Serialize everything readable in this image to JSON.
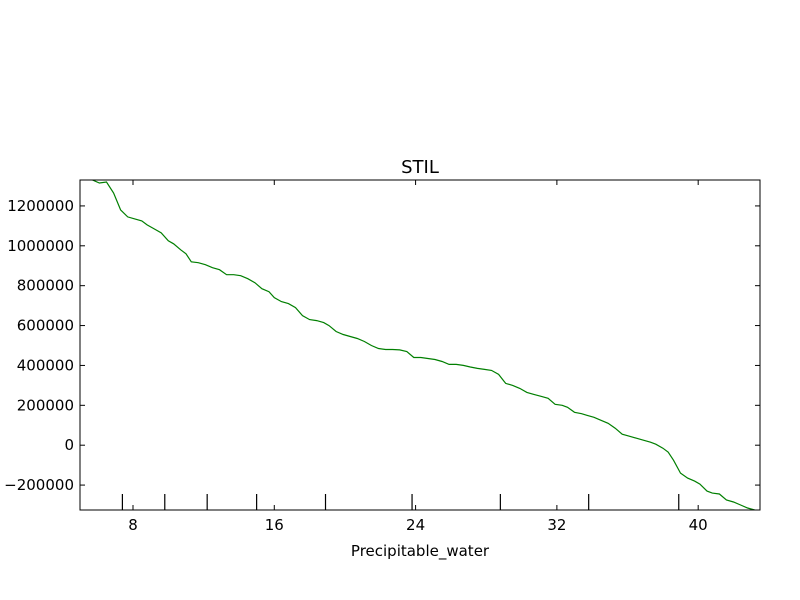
{
  "chart_data": {
    "type": "line",
    "title": "STIL",
    "xlabel": "Precipitable_water",
    "ylabel": "",
    "xlim": [
      5.0,
      43.5
    ],
    "ylim": [
      -325000,
      1330000
    ],
    "xticks": [
      8,
      16,
      24,
      32,
      40
    ],
    "xtick_labels": [
      "8",
      "16",
      "24",
      "32",
      "40"
    ],
    "yticks": [
      -200000,
      0,
      200000,
      400000,
      600000,
      800000,
      1000000,
      1200000
    ],
    "ytick_labels": [
      "−200000",
      "0",
      "200000",
      "400000",
      "600000",
      "800000",
      "1000000",
      "1200000"
    ],
    "rug_x": [
      7.4,
      9.8,
      12.2,
      15.0,
      18.9,
      23.8,
      28.8,
      33.8,
      38.9
    ],
    "grid": false,
    "colors": {
      "line": "#007f00",
      "axes": "#000000",
      "background": "#ffffff"
    },
    "series": [
      {
        "x": [
          5.7,
          6.1,
          6.5,
          6.9,
          7.3,
          7.7,
          8.1,
          8.5,
          8.8,
          9.2,
          9.6,
          10.0,
          10.3,
          10.7,
          11.0,
          11.3,
          11.7,
          12.1,
          12.5,
          12.9,
          13.3,
          13.7,
          14.1,
          14.5,
          14.9,
          15.3,
          15.7,
          16.0,
          16.4,
          16.8,
          17.2,
          17.6,
          18.0,
          18.4,
          18.8,
          19.1,
          19.5,
          19.9,
          20.3,
          20.7,
          21.1,
          21.5,
          21.9,
          22.3,
          22.7,
          23.1,
          23.5,
          23.9,
          24.3,
          24.7,
          25.1,
          25.5,
          25.9,
          26.3,
          26.7,
          27.1,
          27.5,
          27.9,
          28.3,
          28.7,
          29.1,
          29.5,
          29.9,
          30.3,
          30.7,
          31.1,
          31.5,
          31.9,
          32.3,
          32.6,
          33.0,
          33.4,
          33.7,
          34.1,
          34.5,
          34.9,
          35.3,
          35.7,
          36.1,
          36.5,
          36.9,
          37.3,
          37.6,
          38.0,
          38.3,
          38.6,
          39.0,
          39.4,
          39.8,
          40.1,
          40.5,
          40.8,
          41.2,
          41.6,
          42.0,
          42.4,
          42.8,
          43.2
        ],
        "y": [
          1330000,
          1315000,
          1320000,
          1265000,
          1180000,
          1145000,
          1135000,
          1125000,
          1105000,
          1085000,
          1065000,
          1025000,
          1010000,
          980000,
          960000,
          920000,
          915000,
          905000,
          890000,
          880000,
          855000,
          855000,
          850000,
          835000,
          815000,
          785000,
          770000,
          740000,
          720000,
          710000,
          690000,
          650000,
          630000,
          625000,
          615000,
          600000,
          570000,
          555000,
          545000,
          535000,
          520000,
          500000,
          485000,
          480000,
          480000,
          478000,
          470000,
          440000,
          440000,
          435000,
          430000,
          420000,
          405000,
          405000,
          400000,
          392000,
          385000,
          380000,
          375000,
          355000,
          310000,
          300000,
          285000,
          265000,
          255000,
          245000,
          235000,
          205000,
          200000,
          190000,
          165000,
          158000,
          150000,
          140000,
          125000,
          110000,
          85000,
          55000,
          45000,
          35000,
          25000,
          15000,
          5000,
          -15000,
          -35000,
          -75000,
          -140000,
          -165000,
          -180000,
          -195000,
          -230000,
          -240000,
          -245000,
          -275000,
          -285000,
          -300000,
          -315000,
          -325000
        ]
      }
    ]
  }
}
